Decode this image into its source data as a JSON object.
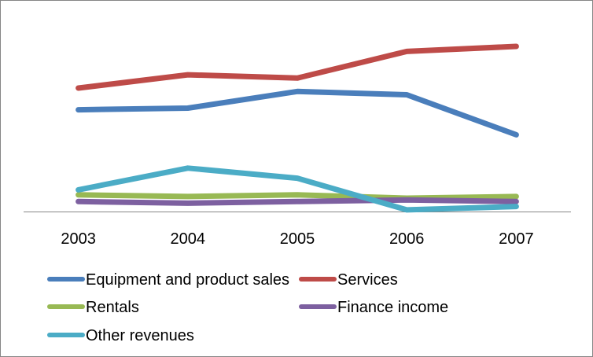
{
  "chart_data": {
    "type": "line",
    "title": "",
    "xlabel": "",
    "ylabel": "",
    "categories": [
      "2003",
      "2004",
      "2005",
      "2006",
      "2007"
    ],
    "ylim": [
      0,
      100
    ],
    "grid": false,
    "legend_position": "bottom",
    "series": [
      {
        "name": "Equipment and product sales",
        "color": "#4A7EBB",
        "values": [
          61,
          62,
          72,
          70,
          46
        ]
      },
      {
        "name": "Services",
        "color": "#BE4B48",
        "values": [
          74,
          82,
          80,
          96,
          99
        ]
      },
      {
        "name": "Rentals",
        "color": "#98B954",
        "values": [
          10,
          9,
          10,
          8,
          9
        ]
      },
      {
        "name": "Finance income",
        "color": "#7D60A0",
        "values": [
          6,
          5,
          6,
          7,
          6
        ]
      },
      {
        "name": "Other revenues",
        "color": "#4BACC6",
        "values": [
          13,
          26,
          20,
          1,
          3
        ]
      }
    ]
  }
}
